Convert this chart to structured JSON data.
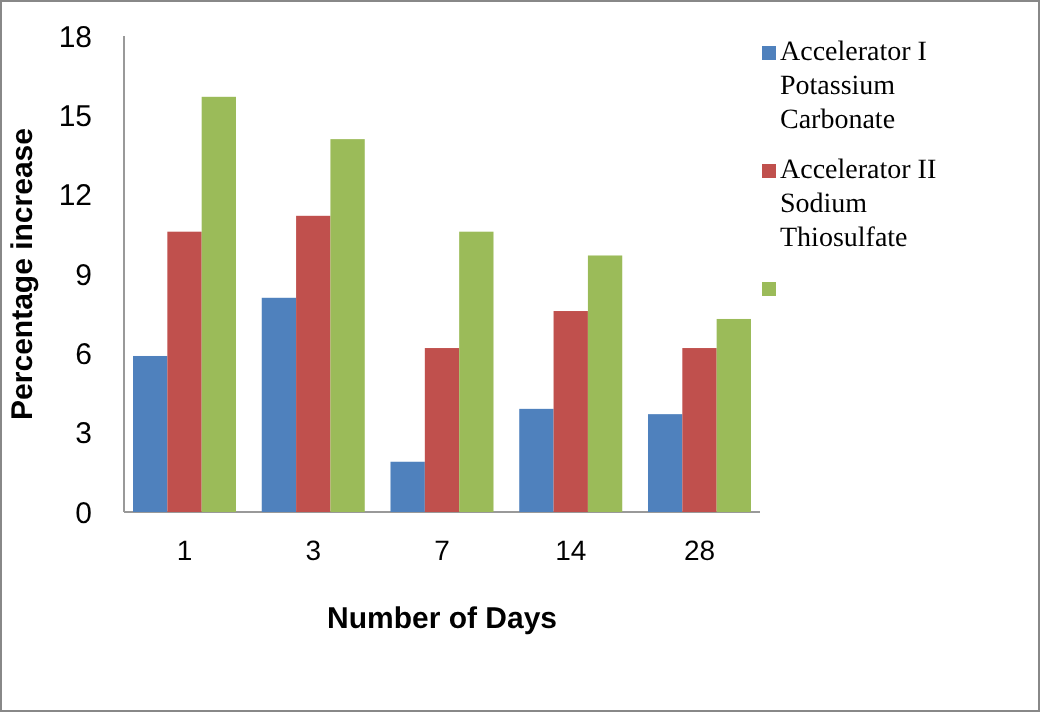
{
  "chart_data": {
    "type": "bar",
    "xlabel": "Number of Days",
    "ylabel": "Percentage increase",
    "categories": [
      "1",
      "3",
      "7",
      "14",
      "28"
    ],
    "series": [
      {
        "name": "Accelerator I Potassium Carbonate",
        "color": "#4f81bd",
        "values": [
          5.9,
          8.1,
          1.9,
          3.9,
          3.7
        ]
      },
      {
        "name": "Accelerator II Sodium Thiosulfate",
        "color": "#c0504d",
        "values": [
          10.6,
          11.2,
          6.2,
          7.6,
          6.2
        ]
      },
      {
        "color": "#9bbb59",
        "values": [
          15.7,
          14.1,
          10.6,
          9.7,
          7.3
        ]
      }
    ],
    "ylim": [
      0,
      18
    ],
    "yticks": [
      0,
      3,
      6,
      9,
      12,
      15,
      18
    ],
    "grid": false,
    "legend": "right"
  }
}
